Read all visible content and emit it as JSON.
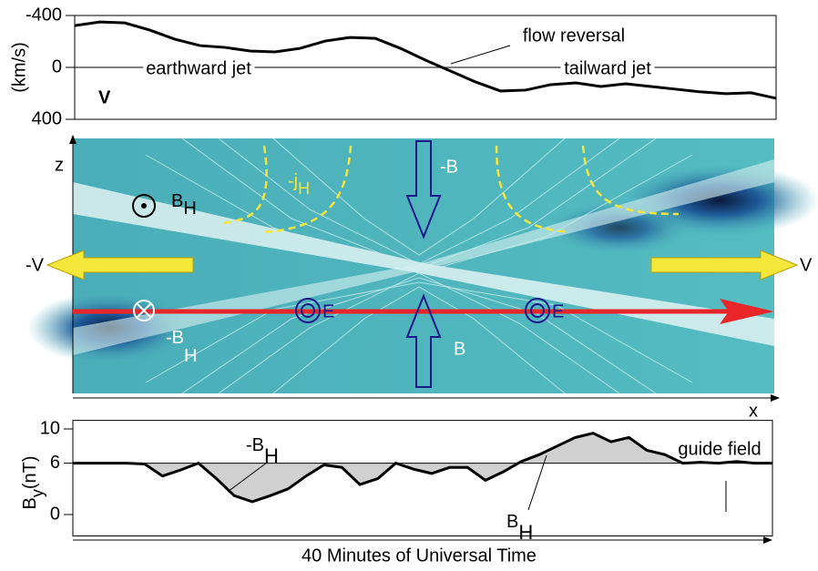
{
  "chart_data": [
    {
      "type": "line",
      "ylabel": "(km/s)",
      "panel_label": "V",
      "ylim": [
        400,
        -400
      ],
      "yticks": [
        -400,
        0,
        400
      ],
      "values": [
        -322,
        -350,
        -343,
        -287,
        -217,
        -168,
        -154,
        -126,
        -119,
        -147,
        -203,
        -231,
        -224,
        -147,
        -56,
        28,
        112,
        182,
        175,
        133,
        119,
        147,
        126,
        147,
        168,
        189,
        203,
        196,
        238
      ],
      "color": "#000000",
      "annotations": [
        "earthward jet",
        "tailward jet",
        "flow reversal"
      ]
    },
    {
      "type": "line",
      "ylabel": {
        "base": "B",
        "sub": "y",
        "unit": "(nT)"
      },
      "ylim": [
        -2.5,
        11
      ],
      "yticks": [
        0,
        6,
        10
      ],
      "baseline": 6,
      "values": [
        6,
        6,
        6,
        6,
        5.9,
        4.5,
        5.2,
        6,
        4.2,
        2.2,
        1.5,
        2.2,
        3,
        4.5,
        5.8,
        5.5,
        3.5,
        4.2,
        6,
        5.3,
        4.8,
        5.5,
        5.5,
        4,
        5,
        6.2,
        7,
        8,
        9,
        9.5,
        8.5,
        9,
        7.5,
        7,
        6,
        6.1,
        6,
        6.2,
        6,
        6
      ],
      "color": "#000000",
      "fill": "#d0d0d0",
      "annotations": {
        "neg": {
          "base": "-B",
          "sub": "H"
        },
        "pos": {
          "base": "B",
          "sub": "H"
        },
        "guide": "guide field"
      }
    }
  ],
  "diagram": {
    "z": "z",
    "x": "x",
    "bh": {
      "base": "B",
      "sub": "H"
    },
    "neg_bh": {
      "base": "-B",
      "sub": "H"
    },
    "jh": {
      "base": "-j",
      "sub": "H"
    },
    "neg_b": "-B",
    "b": "B",
    "e1": "E",
    "e2": "E",
    "neg_v": "-V",
    "v": "V"
  },
  "time_axis": "40 Minutes of Universal Time"
}
